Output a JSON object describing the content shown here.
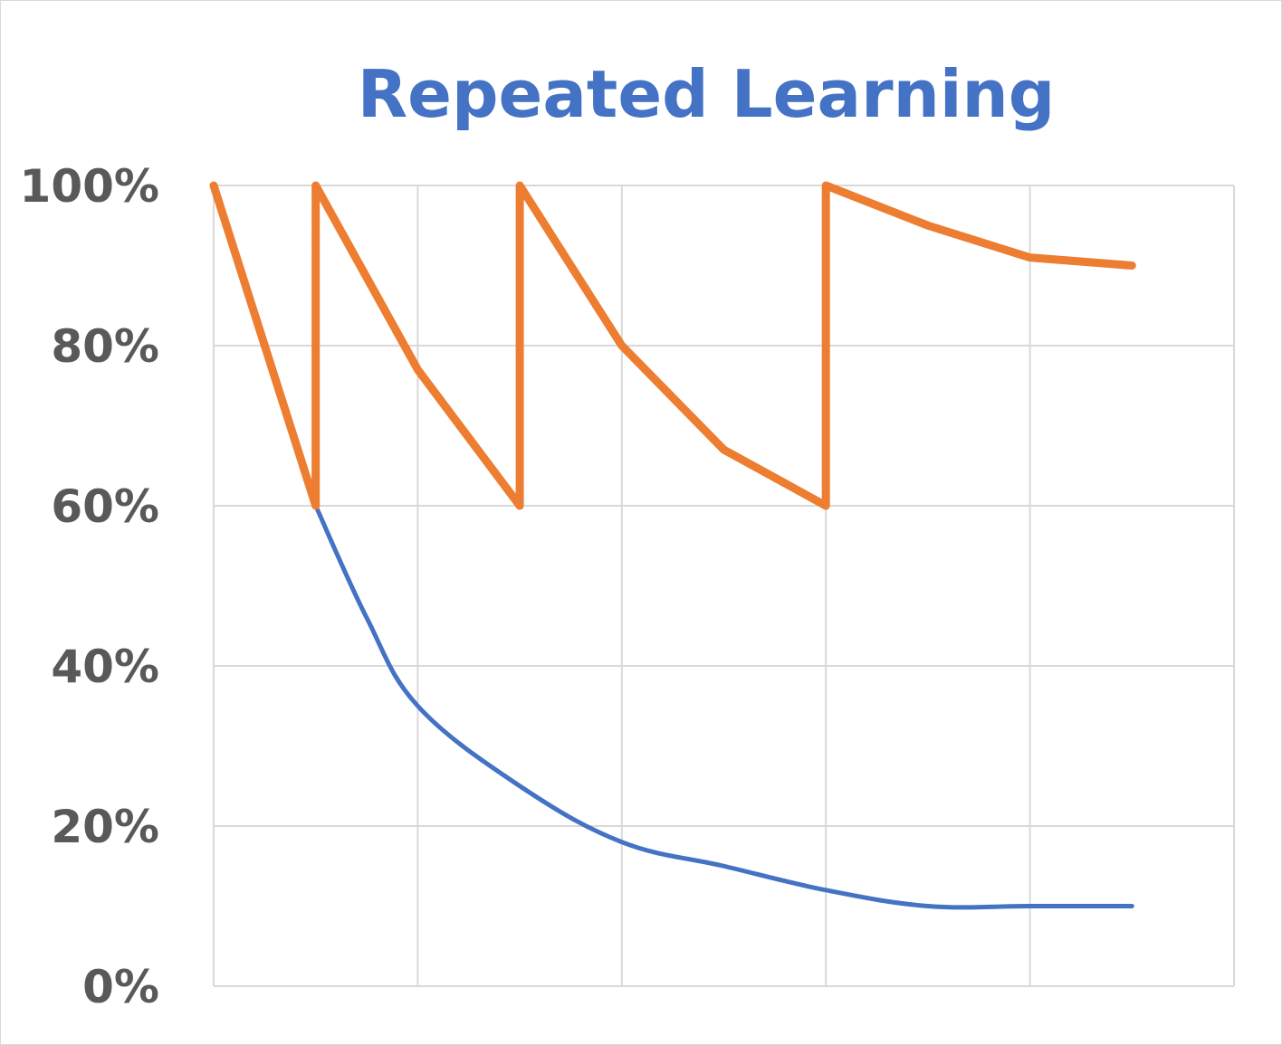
{
  "chart_data": {
    "type": "line",
    "title": "Repeated Learning",
    "xlabel": "",
    "ylabel": "",
    "ylim": [
      0,
      1
    ],
    "xlim": [
      0,
      10
    ],
    "y_ticks": [
      {
        "value": 0,
        "label": "0%"
      },
      {
        "value": 0.2,
        "label": "20%"
      },
      {
        "value": 0.4,
        "label": "40%"
      },
      {
        "value": 0.6,
        "label": "60%"
      },
      {
        "value": 0.8,
        "label": "80%"
      },
      {
        "value": 1.0,
        "label": "100%"
      }
    ],
    "x_gridlines": [
      0,
      2,
      4,
      6,
      8,
      10
    ],
    "grid": true,
    "legend": "none",
    "series": [
      {
        "color": "#4472c4",
        "smooth": true,
        "points": [
          [
            1,
            0.6
          ],
          [
            1.5,
            0.46
          ],
          [
            2,
            0.35
          ],
          [
            3,
            0.25
          ],
          [
            4,
            0.18
          ],
          [
            5,
            0.15
          ],
          [
            6,
            0.12
          ],
          [
            7,
            0.1
          ],
          [
            8,
            0.1
          ],
          [
            9,
            0.1
          ]
        ]
      },
      {
        "color": "#ed7d31",
        "smooth": false,
        "points": [
          [
            0,
            1.0
          ],
          [
            1,
            0.6
          ],
          [
            1,
            1.0
          ],
          [
            2,
            0.77
          ],
          [
            3,
            0.6
          ],
          [
            3,
            1.0
          ],
          [
            4,
            0.8
          ],
          [
            5,
            0.67
          ],
          [
            6,
            0.6
          ],
          [
            6,
            1.0
          ],
          [
            7,
            0.95
          ],
          [
            8,
            0.91
          ],
          [
            9,
            0.9
          ]
        ]
      }
    ]
  }
}
